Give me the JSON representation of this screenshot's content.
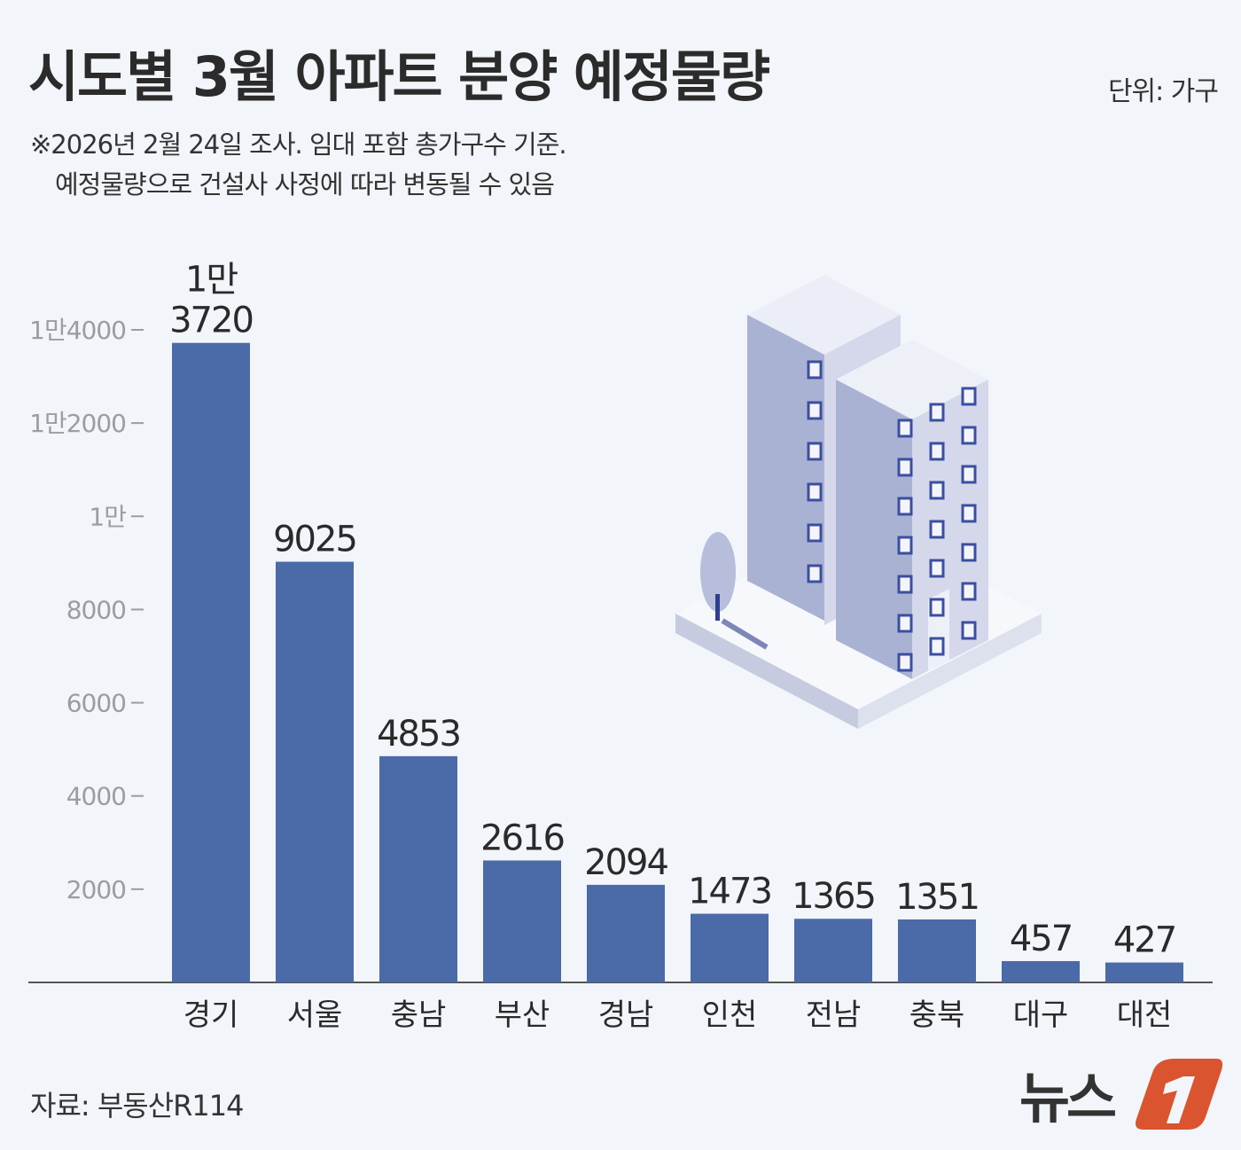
{
  "header": {
    "title": "시도별 3월 아파트 분양 예정물량",
    "unit": "단위: 가구",
    "note_line1": "※2026년 2월 24일 조사. 임대 포함 총가구수 기준.",
    "note_line2": "예정물량으로 건설사 사정에 따라 변동될 수 있음"
  },
  "footer": {
    "source": "자료: 부동산R114",
    "logo_text": "뉴스1"
  },
  "colors": {
    "bar": "#4a6aa8",
    "background": "#f2f5fa",
    "logo": "#d9542f"
  },
  "chart_data": {
    "type": "bar",
    "title": "시도별 3월 아파트 분양 예정물량",
    "xlabel": "",
    "ylabel": "",
    "ylim": [
      0,
      14000
    ],
    "yticks": [
      2000,
      4000,
      6000,
      8000,
      10000,
      12000,
      14000
    ],
    "ytick_labels": [
      "2000",
      "4000",
      "6000",
      "8000",
      "1만",
      "1만2000",
      "1만4000"
    ],
    "grid": false,
    "categories": [
      "경기",
      "서울",
      "충남",
      "부산",
      "경남",
      "인천",
      "전남",
      "충북",
      "대구",
      "대전"
    ],
    "values": [
      13720,
      9025,
      4853,
      2616,
      2094,
      1473,
      1365,
      1351,
      457,
      427
    ],
    "value_labels": [
      "1만\n3720",
      "9025",
      "4853",
      "2616",
      "2094",
      "1473",
      "1365",
      "1351",
      "457",
      "427"
    ]
  }
}
